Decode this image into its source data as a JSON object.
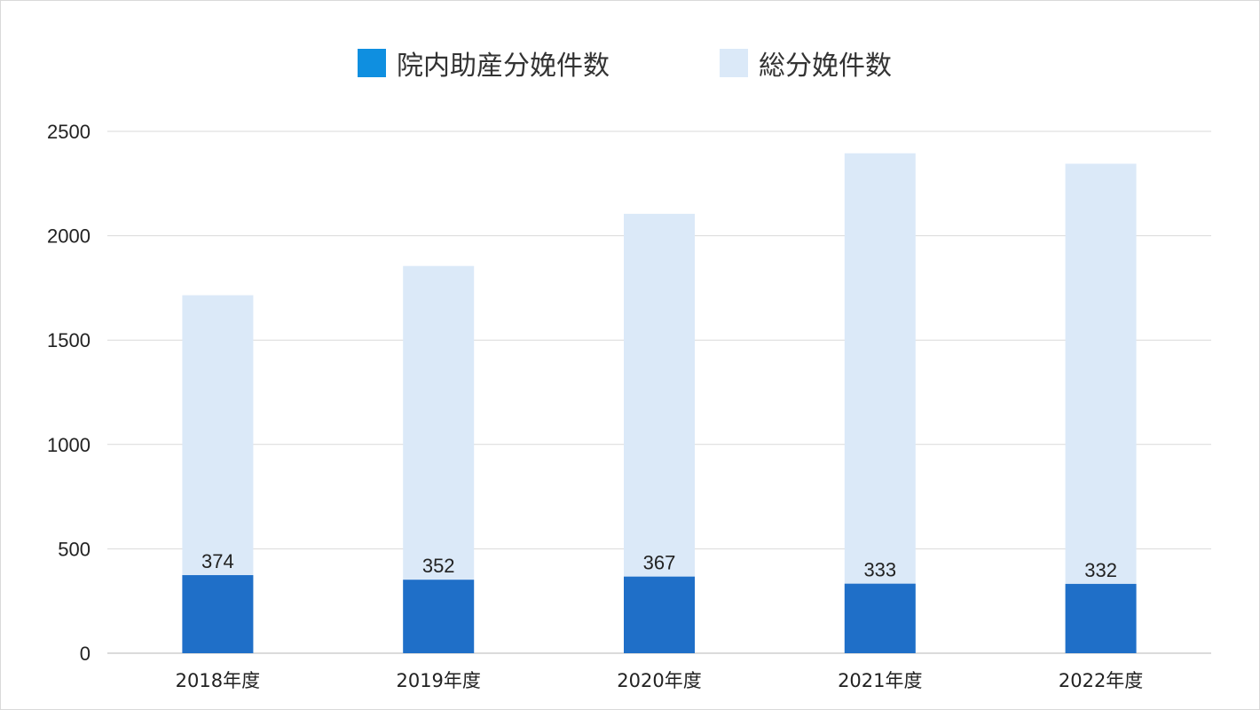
{
  "chart_data": {
    "type": "bar",
    "stacked": false,
    "overlapped": true,
    "categories": [
      "2018年度",
      "2019年度",
      "2020年度",
      "2021年度",
      "2022年度"
    ],
    "series": [
      {
        "name": "院内助産分娩件数",
        "color": "#1f6fc8",
        "values": [
          374,
          352,
          367,
          333,
          332
        ],
        "data_labels": [
          "374",
          "352",
          "367",
          "333",
          "332"
        ]
      },
      {
        "name": "総分娩件数",
        "color": "#dbe9f8",
        "values": [
          1715,
          1855,
          2105,
          2395,
          2345
        ]
      }
    ],
    "ylim": [
      0,
      2500
    ],
    "yticks": [
      "0",
      "500",
      "1000",
      "1500",
      "2000",
      "2500"
    ],
    "ytick_values": [
      0,
      500,
      1000,
      1500,
      2000,
      2500
    ],
    "grid": true,
    "legend_position": "top-center"
  },
  "legend": {
    "items": [
      {
        "label": "院内助産分娩件数",
        "color": "#0f8fe0"
      },
      {
        "label": "総分娩件数",
        "color": "#dbe9f8"
      }
    ]
  }
}
